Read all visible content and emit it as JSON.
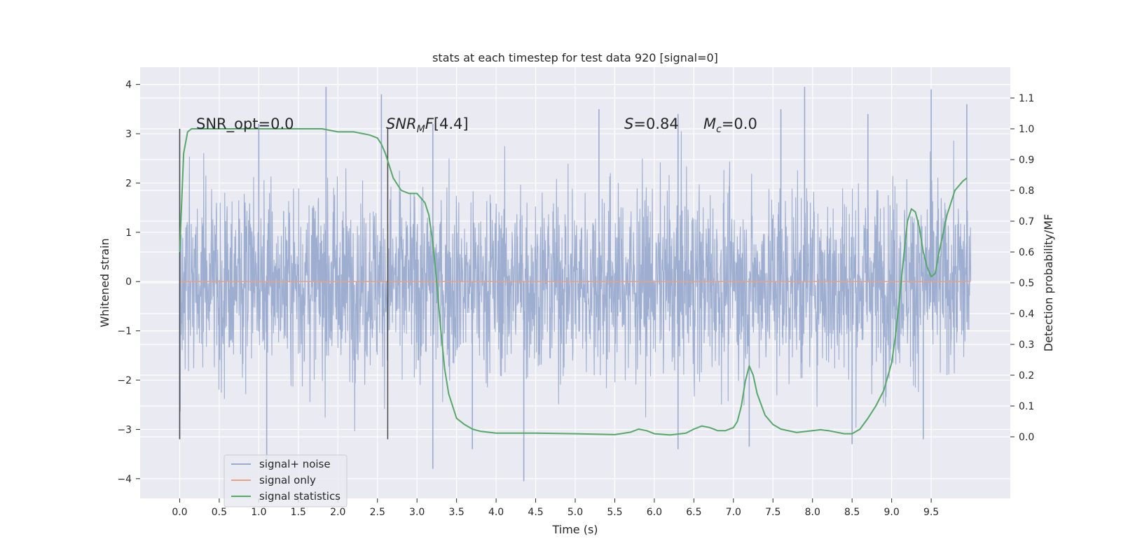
{
  "chart_data": {
    "type": "line",
    "title": "stats at each timestep for test data 920 [signal=0]",
    "xlabel": "Time (s)",
    "ylabel": "Whitened strain",
    "y2label": "Detection probability/MF",
    "xlim": [
      -0.5,
      10.5
    ],
    "ylim": [
      -4.4,
      4.35
    ],
    "y2lim": [
      -0.2,
      1.2
    ],
    "grid": true,
    "legend_position": "lower-left",
    "x_ticks": [
      "0.0",
      "0.5",
      "1.0",
      "1.5",
      "2.0",
      "2.5",
      "3.0",
      "3.5",
      "4.0",
      "4.5",
      "5.0",
      "5.5",
      "6.0",
      "6.5",
      "7.0",
      "7.5",
      "8.0",
      "8.5",
      "9.0",
      "9.5"
    ],
    "y_ticks": [
      "−4",
      "−3",
      "−2",
      "−1",
      "0",
      "1",
      "2",
      "3",
      "4"
    ],
    "y2_ticks": [
      "0.0",
      "0.1",
      "0.2",
      "0.3",
      "0.4",
      "0.5",
      "0.6",
      "0.7",
      "0.8",
      "0.9",
      "1.0",
      "1.1"
    ],
    "annotations": {
      "snr_opt": "SNR_opt=0.0",
      "snr_mf": "[4.4]",
      "s": "=0.84",
      "mc": "=0.0"
    },
    "vlines": [
      0.0,
      2.63
    ],
    "series": [
      {
        "name": "signal+ noise",
        "color": "#9aabcf",
        "envelope": {
          "x_range": [
            0.0,
            10.0
          ],
          "typical_range": [
            -1.3,
            1.2
          ],
          "peak_positive": [
            [
              0.0,
              3.1
            ],
            [
              1.0,
              3.2
            ],
            [
              1.85,
              3.95
            ],
            [
              2.55,
              3.8
            ],
            [
              3.2,
              3.2
            ],
            [
              5.3,
              3.5
            ],
            [
              6.3,
              3.4
            ],
            [
              7.6,
              3.5
            ],
            [
              7.9,
              3.95
            ],
            [
              8.7,
              3.4
            ],
            [
              9.5,
              3.9
            ],
            [
              9.95,
              3.6
            ]
          ],
          "peak_negative": [
            [
              0.0,
              -3.2
            ],
            [
              1.1,
              -3.6
            ],
            [
              3.2,
              -3.8
            ],
            [
              4.35,
              -4.05
            ],
            [
              3.7,
              -3.4
            ],
            [
              6.3,
              -3.4
            ],
            [
              7.2,
              -3.35
            ],
            [
              8.5,
              -3.3
            ],
            [
              9.4,
              -3.2
            ]
          ]
        }
      },
      {
        "name": "signal only",
        "color": "#e8a185",
        "x": [
          0.0,
          10.0
        ],
        "y": [
          0.0,
          0.0
        ]
      },
      {
        "name": "signal statistics",
        "color": "#55a868",
        "axis": "right",
        "x": [
          0.0,
          0.05,
          0.1,
          0.15,
          0.2,
          0.3,
          0.5,
          1.0,
          1.5,
          1.8,
          2.0,
          2.2,
          2.4,
          2.5,
          2.55,
          2.6,
          2.65,
          2.7,
          2.8,
          2.9,
          3.0,
          3.1,
          3.15,
          3.2,
          3.25,
          3.3,
          3.35,
          3.4,
          3.45,
          3.5,
          3.6,
          3.7,
          3.8,
          4.0,
          4.2,
          4.5,
          5.0,
          5.5,
          5.7,
          5.8,
          5.9,
          6.0,
          6.2,
          6.4,
          6.5,
          6.6,
          6.7,
          6.8,
          6.9,
          7.0,
          7.05,
          7.1,
          7.15,
          7.2,
          7.25,
          7.3,
          7.4,
          7.5,
          7.6,
          7.8,
          8.0,
          8.1,
          8.2,
          8.4,
          8.5,
          8.6,
          8.7,
          8.8,
          8.9,
          9.0,
          9.05,
          9.1,
          9.15,
          9.2,
          9.25,
          9.3,
          9.35,
          9.4,
          9.45,
          9.5,
          9.55,
          9.6,
          9.7,
          9.8,
          9.9,
          9.95
        ],
        "y": [
          0.6,
          0.92,
          0.99,
          1.0,
          1.0,
          1.0,
          1.0,
          1.0,
          1.0,
          1.0,
          0.99,
          0.99,
          0.98,
          0.97,
          0.95,
          0.92,
          0.88,
          0.84,
          0.8,
          0.79,
          0.79,
          0.76,
          0.72,
          0.63,
          0.5,
          0.35,
          0.22,
          0.14,
          0.1,
          0.06,
          0.04,
          0.025,
          0.018,
          0.012,
          0.012,
          0.012,
          0.01,
          0.007,
          0.015,
          0.025,
          0.02,
          0.01,
          0.006,
          0.012,
          0.025,
          0.035,
          0.03,
          0.02,
          0.02,
          0.03,
          0.05,
          0.1,
          0.18,
          0.23,
          0.2,
          0.14,
          0.07,
          0.04,
          0.025,
          0.014,
          0.02,
          0.023,
          0.02,
          0.01,
          0.01,
          0.025,
          0.06,
          0.1,
          0.15,
          0.24,
          0.33,
          0.45,
          0.58,
          0.7,
          0.74,
          0.73,
          0.68,
          0.6,
          0.55,
          0.52,
          0.53,
          0.6,
          0.72,
          0.8,
          0.83,
          0.84
        ]
      }
    ]
  },
  "legend": {
    "items": [
      {
        "label": "signal+ noise",
        "color": "#9aabcf"
      },
      {
        "label": "signal only",
        "color": "#e8a185"
      },
      {
        "label": "signal statistics",
        "color": "#55a868"
      }
    ]
  },
  "colors": {
    "plot_background": "#eaeaf2",
    "grid": "#ffffff",
    "vline": "#4a4a4a",
    "text": "#262626"
  }
}
